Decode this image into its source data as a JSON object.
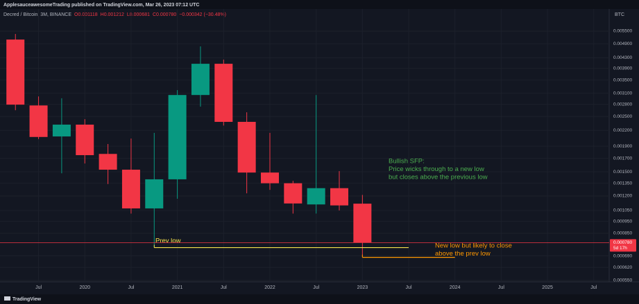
{
  "chart_data": {
    "type": "candlestick",
    "publisher": "ApplesauceawesomeTrading published on TradingView.com, Mar 26, 2023 07:12 UTC",
    "symbol": "Decred / Bitcoin, 3M, BINANCE",
    "ohlc_header": {
      "open": "O0.001118",
      "high": "H0.001212",
      "low": "L0.000681",
      "close": "C0.000780",
      "change": "−0.000342 (−30.48%)"
    },
    "currency": "BTC",
    "brand": "TradingView",
    "up_color": "#089981",
    "down_color": "#f23645",
    "log_scale": true,
    "grid": true,
    "x": [
      "2019-04",
      "2019-07",
      "2019-10",
      "2020-01",
      "2020-04",
      "2020-07",
      "2020-10",
      "2021-01",
      "2021-04",
      "2021-07",
      "2021-10",
      "2022-01",
      "2022-04",
      "2022-07",
      "2022-10",
      "2023-01"
    ],
    "open": [
      0.00509,
      0.00277,
      0.00208,
      0.00232,
      0.00177,
      0.00153,
      0.00107,
      0.0014,
      0.00305,
      0.00407,
      0.00238,
      0.00149,
      0.00135,
      0.00111,
      0.00129,
      0.001118
    ],
    "high": [
      0.00536,
      0.00301,
      0.00296,
      0.00244,
      0.00194,
      0.00204,
      0.00215,
      0.00319,
      0.00478,
      0.00423,
      0.0026,
      0.00215,
      0.00138,
      0.00305,
      0.00151,
      0.001212
    ],
    "low": [
      0.00265,
      0.00203,
      0.00148,
      0.00162,
      0.00134,
      0.00102,
      0.000745,
      0.00117,
      0.00274,
      0.0023,
      0.00123,
      0.00127,
      0.00102,
      0.00102,
      0.00105,
      0.000681
    ],
    "close": [
      0.00279,
      0.00207,
      0.00232,
      0.00175,
      0.00153,
      0.00107,
      0.0014,
      0.00305,
      0.00407,
      0.00238,
      0.00149,
      0.00135,
      0.00112,
      0.00129,
      0.0011,
      0.00078
    ],
    "xlim": [
      "2019-02",
      "2025-09"
    ],
    "xticks": [
      {
        "value": "2019-07",
        "label": "Jul"
      },
      {
        "value": "2020-01",
        "label": "2020"
      },
      {
        "value": "2020-07",
        "label": "Jul"
      },
      {
        "value": "2021-01",
        "label": "2021"
      },
      {
        "value": "2021-07",
        "label": "Jul"
      },
      {
        "value": "2022-01",
        "label": "2022"
      },
      {
        "value": "2022-07",
        "label": "Jul"
      },
      {
        "value": "2023-01",
        "label": "2023"
      },
      {
        "value": "2023-07",
        "label": "Jul"
      },
      {
        "value": "2024-01",
        "label": "2024"
      },
      {
        "value": "2024-07",
        "label": "Jul"
      },
      {
        "value": "2025-01",
        "label": "2025"
      },
      {
        "value": "2025-07",
        "label": "Jul"
      }
    ],
    "ylim": [
      0.000543,
      0.00675
    ],
    "yticks": [
      {
        "value": 0.0055,
        "label": "0.005500"
      },
      {
        "value": 0.0049,
        "label": "0.004900"
      },
      {
        "value": 0.0043,
        "label": "0.004300"
      },
      {
        "value": 0.0039,
        "label": "0.003900"
      },
      {
        "value": 0.0035,
        "label": "0.003500"
      },
      {
        "value": 0.0031,
        "label": "0.003100"
      },
      {
        "value": 0.0028,
        "label": "0.002800"
      },
      {
        "value": 0.0025,
        "label": "0.002500"
      },
      {
        "value": 0.0022,
        "label": "0.002200"
      },
      {
        "value": 0.0019,
        "label": "0.001900"
      },
      {
        "value": 0.0017,
        "label": "0.001700"
      },
      {
        "value": 0.0015,
        "label": "0.001500"
      },
      {
        "value": 0.00135,
        "label": "0.001350"
      },
      {
        "value": 0.0012,
        "label": "0.001200"
      },
      {
        "value": 0.00105,
        "label": "0.001050"
      },
      {
        "value": 0.00095,
        "label": "0.000950"
      },
      {
        "value": 0.00085,
        "label": "0.000850"
      },
      {
        "value": 0.00069,
        "label": "0.000690"
      },
      {
        "value": 0.00062,
        "label": "0.000620"
      },
      {
        "value": 0.00055,
        "label": "0.000550"
      }
    ],
    "last_price": {
      "value": 0.00078,
      "label": "0.000780",
      "countdown": "5d 17h"
    },
    "annotations": [
      {
        "lines": [
          "Prev low"
        ],
        "color": "#f7e34b",
        "price": 0.000745,
        "from": "2020-10",
        "to": "2023-07"
      },
      {
        "lines": [
          "New low but likely to close",
          "above the prev low"
        ],
        "color": "#ff9800",
        "price": 0.000681,
        "from": "2023-01",
        "to": "2024-01"
      },
      {
        "lines": [
          "Bullish SFP:",
          "Price wicks through to a new low",
          "but closes above the previous low"
        ],
        "color": "#4caf50"
      }
    ]
  }
}
